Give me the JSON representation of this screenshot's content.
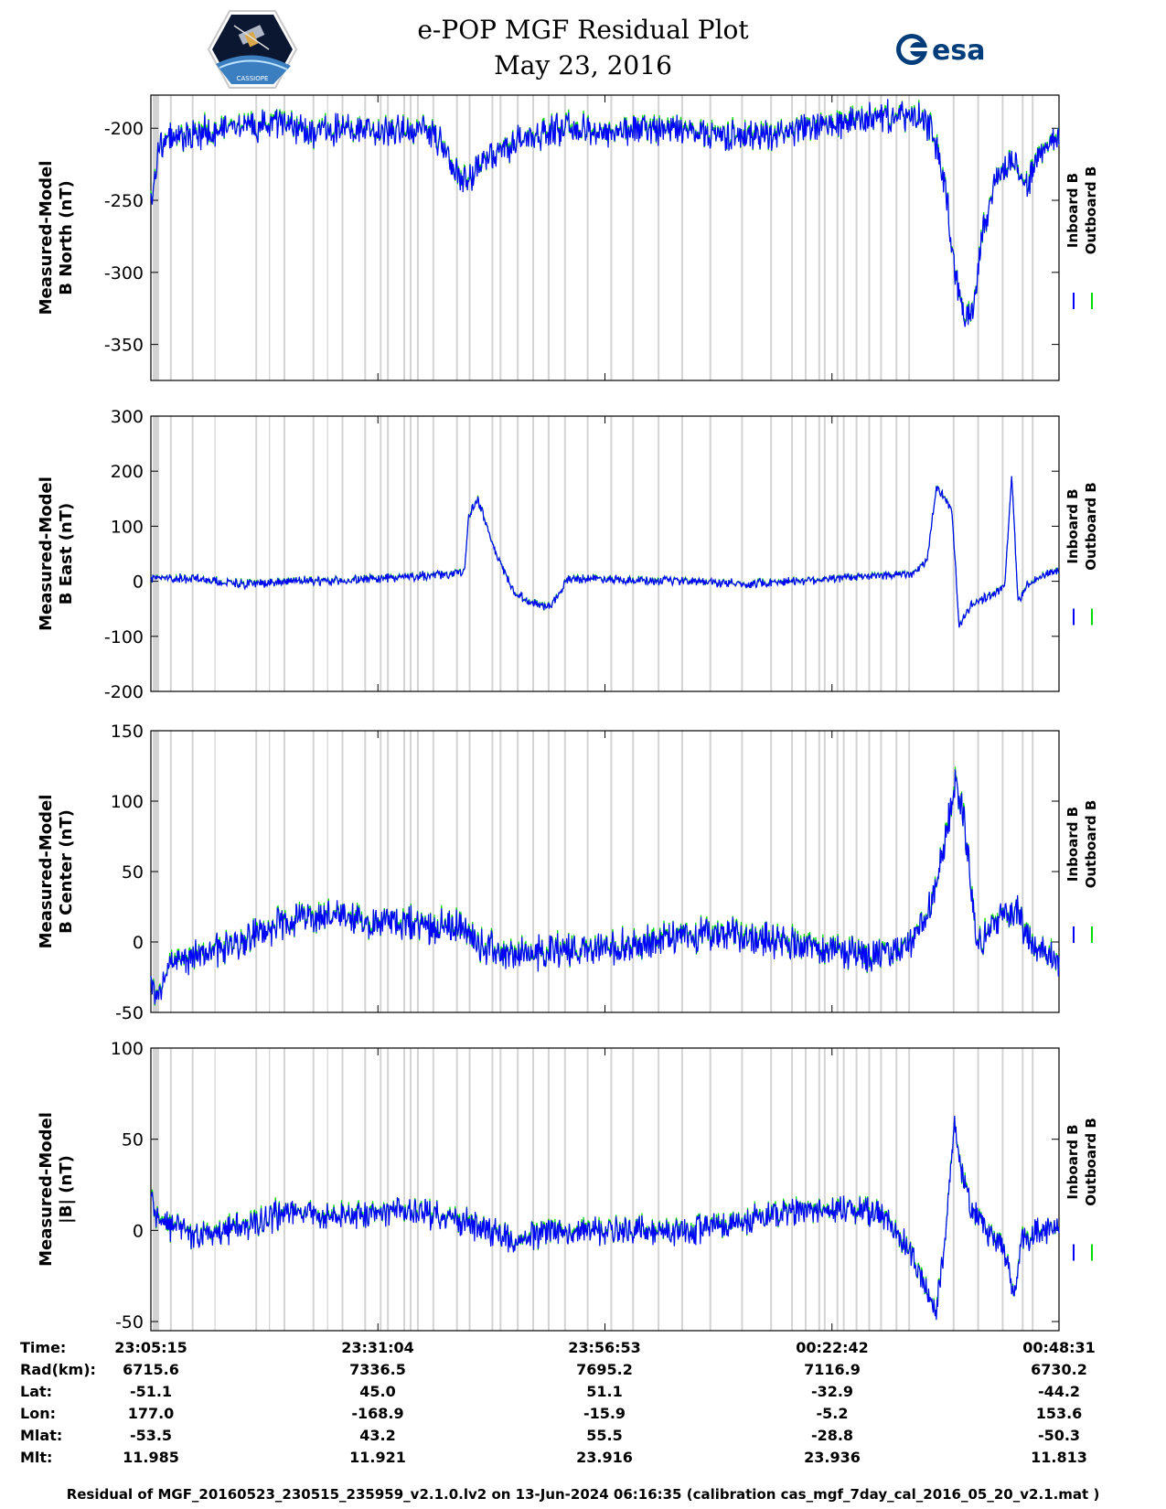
{
  "header": {
    "title": "e-POP MGF Residual Plot",
    "date": "May 23, 2016",
    "left_logo": "cassiope-mission-badge",
    "left_logo_text": "CASSIOPE",
    "right_logo_text": "esa"
  },
  "chart_data": [
    {
      "type": "line",
      "panel": "b-north",
      "ylabel": [
        "Measured-Model",
        "B North (nT)"
      ],
      "ylim": [
        -375,
        -177
      ],
      "yticks": [
        -200,
        -250,
        -300,
        -350
      ],
      "xticks_visible": true,
      "legend": [
        "Inboard B",
        "Outboard B"
      ],
      "series": [
        {
          "name": "Inboard B",
          "color": "#0000ff",
          "x": [
            0.0,
            0.3,
            1.0,
            3.0,
            6.0,
            10.0,
            14.0,
            18.0,
            22.0,
            26.0,
            30.0,
            32.0,
            33.5,
            35.0,
            37.0,
            40.0,
            45.0,
            50.0,
            55.0,
            60.0,
            65.0,
            70.0,
            75.0,
            80.0,
            84.0,
            86.0,
            87.5,
            88.5,
            89.5,
            90.5,
            91.5,
            93.0,
            95.0,
            96.5,
            98.0,
            100.0
          ],
          "y": [
            -250,
            -240,
            -210,
            -205,
            -203,
            -200,
            -196,
            -203,
            -200,
            -203,
            -200,
            -210,
            -232,
            -238,
            -220,
            -210,
            -200,
            -203,
            -200,
            -202,
            -206,
            -202,
            -198,
            -192,
            -192,
            -200,
            -240,
            -300,
            -330,
            -325,
            -275,
            -235,
            -222,
            -240,
            -215,
            -208
          ],
          "noise": 8
        }
      ],
      "data_gaps_shaded": true
    },
    {
      "type": "line",
      "panel": "b-east",
      "ylabel": [
        "Measured-Model",
        "B East (nT)"
      ],
      "ylim": [
        -200,
        300
      ],
      "yticks": [
        300,
        200,
        100,
        0,
        -100,
        -200
      ],
      "legend": [
        "Inboard B",
        "Outboard B"
      ],
      "series": [
        {
          "name": "Inboard B",
          "color": "#0000ff",
          "x": [
            0.0,
            5.0,
            10.0,
            15.0,
            20.0,
            25.0,
            30.0,
            34.5,
            35.0,
            36.0,
            38.0,
            40.0,
            42.0,
            44.0,
            46.0,
            50.0,
            55.0,
            60.0,
            65.0,
            70.0,
            75.0,
            80.0,
            84.0,
            85.5,
            86.5,
            87.5,
            88.2,
            89.0,
            90.5,
            92.0,
            94.0,
            94.8,
            95.5,
            96.3,
            97.5,
            100.0
          ],
          "y": [
            5,
            5,
            -5,
            0,
            0,
            5,
            10,
            15,
            120,
            150,
            50,
            -20,
            -40,
            -45,
            5,
            5,
            0,
            0,
            -5,
            0,
            5,
            10,
            15,
            40,
            170,
            150,
            130,
            -80,
            -40,
            -30,
            -10,
            190,
            -40,
            -10,
            5,
            20
          ],
          "noise": 6
        }
      ],
      "data_gaps_shaded": true
    },
    {
      "type": "line",
      "panel": "b-center",
      "ylabel": [
        "Measured-Model",
        "B Center (nT)"
      ],
      "ylim": [
        -50,
        150
      ],
      "yticks": [
        150,
        100,
        50,
        0,
        -50
      ],
      "legend": [
        "Inboard B",
        "Outboard B"
      ],
      "series": [
        {
          "name": "Inboard B",
          "color": "#0000ff",
          "x": [
            0.0,
            0.5,
            2.0,
            5.0,
            10.0,
            15.0,
            18.0,
            22.0,
            26.0,
            30.0,
            34.0,
            37.0,
            40.0,
            45.0,
            50.0,
            55.0,
            60.0,
            65.0,
            70.0,
            75.0,
            80.0,
            83.0,
            85.0,
            86.5,
            87.5,
            88.5,
            89.5,
            91.0,
            93.0,
            94.5,
            95.5,
            97.0,
            100.0
          ],
          "y": [
            -25,
            -40,
            -15,
            -10,
            0,
            15,
            20,
            15,
            15,
            12,
            10,
            -5,
            -10,
            -5,
            -5,
            0,
            5,
            5,
            0,
            -5,
            -10,
            -5,
            10,
            40,
            70,
            115,
            90,
            -5,
            15,
            20,
            20,
            0,
            -15
          ],
          "noise": 9
        }
      ],
      "data_gaps_shaded": true
    },
    {
      "type": "line",
      "panel": "b-magnitude",
      "ylabel": [
        "Measured-Model",
        "|B| (nT)"
      ],
      "ylim": [
        -55,
        100
      ],
      "yticks": [
        100,
        50,
        0,
        -50
      ],
      "legend": [
        "Inboard B",
        "Outboard B"
      ],
      "series": [
        {
          "name": "Inboard B",
          "color": "#0000ff",
          "x": [
            0.0,
            0.5,
            2.0,
            5.0,
            10.0,
            15.0,
            20.0,
            25.0,
            30.0,
            34.0,
            37.0,
            40.0,
            45.0,
            50.0,
            55.0,
            60.0,
            65.0,
            70.0,
            75.0,
            80.0,
            82.0,
            84.0,
            85.5,
            86.5,
            87.5,
            88.5,
            89.5,
            90.5,
            92.0,
            94.0,
            95.0,
            96.0,
            98.0,
            100.0
          ],
          "y": [
            20,
            8,
            3,
            -3,
            2,
            10,
            8,
            10,
            10,
            5,
            0,
            -5,
            0,
            0,
            0,
            0,
            5,
            10,
            12,
            10,
            0,
            -15,
            -35,
            -45,
            0,
            60,
            25,
            10,
            0,
            -10,
            -35,
            -5,
            0,
            2
          ],
          "noise": 6
        }
      ],
      "data_gaps_shaded": true
    }
  ],
  "x_axis": {
    "tick_positions_pct": [
      0,
      25,
      50,
      75,
      100
    ]
  },
  "info_table": {
    "labels": [
      "Time:",
      "Rad(km):",
      "Lat:",
      "Lon:",
      "Mlat:",
      "Mlt:"
    ],
    "columns": [
      [
        "23:05:15",
        "6715.6",
        "-51.1",
        "177.0",
        "-53.5",
        "11.985"
      ],
      [
        "23:31:04",
        "7336.5",
        "45.0",
        "-168.9",
        "43.2",
        "11.921"
      ],
      [
        "23:56:53",
        "7695.2",
        "51.1",
        "-15.9",
        "55.5",
        "23.916"
      ],
      [
        "00:22:42",
        "7116.9",
        "-32.9",
        "-5.2",
        "-28.8",
        "23.936"
      ],
      [
        "00:48:31",
        "6730.2",
        "-44.2",
        "153.6",
        "-50.3",
        "11.813"
      ]
    ]
  },
  "footer": "Residual of MGF_20160523_230515_235959_v2.1.0.lv2 on 13-Jun-2024 06:16:35 (calibration cas_mgf_7day_cal_2016_05_20_v2.1.mat )",
  "colors": {
    "inboard": "#0000ff",
    "outboard": "#00dd00",
    "gap": "#d3d3d3"
  }
}
